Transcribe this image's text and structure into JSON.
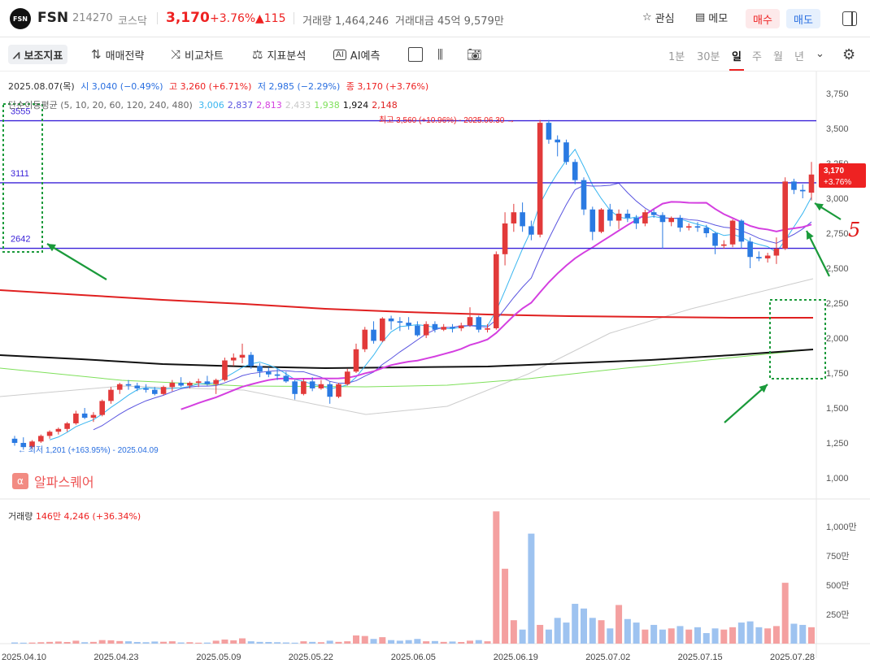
{
  "header": {
    "logo_text": "FSN",
    "name": "FSN",
    "code": "214270",
    "market": "코스닥",
    "price": "3,170",
    "change_pct": "+3.76%",
    "change_abs": "▲115",
    "volume_label": "거래량 1,464,246",
    "amount_label": "거래대금 45억 9,579만",
    "watch_label": "관심",
    "memo_label": "메모",
    "buy_label": "매수",
    "sell_label": "매도"
  },
  "toolbar": {
    "indicators_label": "보조지표",
    "strategy_label": "매매전략",
    "compare_label": "비교차트",
    "analysis_label": "지표분석",
    "ai_label": "AI예측",
    "periods": [
      "1분",
      "30분",
      "일",
      "주",
      "월",
      "년"
    ],
    "active_period": "일"
  },
  "info": {
    "date": "2025.08.07(목)",
    "open": "시 3,040 (−0.49%)",
    "high": "고 3,260 (+6.71%)",
    "low": "저 2,985 (−2.29%)",
    "close": "종 3,170 (+3.76%)",
    "ma_label": "단순이동평균 (5, 10, 20, 60, 120, 240, 480)",
    "ma_values": [
      "3,006",
      "2,837",
      "2,813",
      "2,433",
      "1,938",
      "1,924",
      "2,148"
    ],
    "ma_colors": [
      "#39b6f0",
      "#5a55e0",
      "#d43fe0",
      "#c8c8c8",
      "#7ee05a",
      "#111111",
      "#e02020"
    ]
  },
  "volume_info": {
    "label": "거래량",
    "value": "146만 4,246 (+36.34%)"
  },
  "brand": {
    "name": "알파스퀘어",
    "icon": "α"
  },
  "annotations": {
    "high_label": "최고 3,560 (+10.96%) - 2025.06.30",
    "low_label": "최저 1,201 (+163.95%) - 2025.04.09",
    "hline_labels": [
      "3555",
      "3111",
      "2642"
    ],
    "handwritten_mark": "5",
    "last_price_tag": [
      "3,170",
      "+3.76%"
    ]
  },
  "chart_data": {
    "type": "candlestick",
    "x_tick_labels": [
      "2025.04.10",
      "2025.04.23",
      "2025.05.09",
      "2025.05.22",
      "2025.06.05",
      "2025.06.19",
      "2025.07.02",
      "2025.07.15",
      "2025.07.28"
    ],
    "y_ticks": [
      1000,
      1250,
      1500,
      1750,
      2000,
      2250,
      2500,
      2750,
      3000,
      3250,
      3500,
      3750
    ],
    "y_tick_labels": [
      "1,000",
      "1,250",
      "1,500",
      "1,750",
      "2,000",
      "2,250",
      "2,500",
      "2,750",
      "3,000",
      "3,250",
      "3,500",
      "3,750"
    ],
    "volume_ticks": [
      250,
      500,
      750,
      1000
    ],
    "volume_tick_labels": [
      "250만",
      "500만",
      "750만",
      "1,000만"
    ],
    "candles": [
      {
        "o": 1280,
        "h": 1300,
        "l": 1230,
        "c": 1250
      },
      {
        "o": 1250,
        "h": 1290,
        "l": 1201,
        "c": 1220
      },
      {
        "o": 1220,
        "h": 1270,
        "l": 1210,
        "c": 1260
      },
      {
        "o": 1260,
        "h": 1310,
        "l": 1250,
        "c": 1300
      },
      {
        "o": 1300,
        "h": 1340,
        "l": 1280,
        "c": 1330
      },
      {
        "o": 1330,
        "h": 1360,
        "l": 1310,
        "c": 1350
      },
      {
        "o": 1350,
        "h": 1400,
        "l": 1330,
        "c": 1390
      },
      {
        "o": 1390,
        "h": 1480,
        "l": 1380,
        "c": 1460
      },
      {
        "o": 1460,
        "h": 1500,
        "l": 1420,
        "c": 1430
      },
      {
        "o": 1430,
        "h": 1470,
        "l": 1400,
        "c": 1450
      },
      {
        "o": 1450,
        "h": 1560,
        "l": 1440,
        "c": 1550
      },
      {
        "o": 1550,
        "h": 1650,
        "l": 1530,
        "c": 1630
      },
      {
        "o": 1630,
        "h": 1680,
        "l": 1600,
        "c": 1670
      },
      {
        "o": 1670,
        "h": 1700,
        "l": 1630,
        "c": 1660
      },
      {
        "o": 1660,
        "h": 1680,
        "l": 1620,
        "c": 1640
      },
      {
        "o": 1640,
        "h": 1670,
        "l": 1610,
        "c": 1630
      },
      {
        "o": 1630,
        "h": 1650,
        "l": 1590,
        "c": 1600
      },
      {
        "o": 1600,
        "h": 1660,
        "l": 1590,
        "c": 1650
      },
      {
        "o": 1650,
        "h": 1700,
        "l": 1620,
        "c": 1680
      },
      {
        "o": 1680,
        "h": 1720,
        "l": 1650,
        "c": 1660
      },
      {
        "o": 1660,
        "h": 1690,
        "l": 1640,
        "c": 1680
      },
      {
        "o": 1680,
        "h": 1710,
        "l": 1650,
        "c": 1690
      },
      {
        "o": 1690,
        "h": 1730,
        "l": 1660,
        "c": 1670
      },
      {
        "o": 1670,
        "h": 1710,
        "l": 1600,
        "c": 1700
      },
      {
        "o": 1700,
        "h": 1860,
        "l": 1690,
        "c": 1840
      },
      {
        "o": 1840,
        "h": 1890,
        "l": 1800,
        "c": 1860
      },
      {
        "o": 1860,
        "h": 1960,
        "l": 1820,
        "c": 1880
      },
      {
        "o": 1880,
        "h": 1900,
        "l": 1780,
        "c": 1800
      },
      {
        "o": 1800,
        "h": 1820,
        "l": 1720,
        "c": 1760
      },
      {
        "o": 1760,
        "h": 1790,
        "l": 1720,
        "c": 1740
      },
      {
        "o": 1740,
        "h": 1780,
        "l": 1700,
        "c": 1730
      },
      {
        "o": 1730,
        "h": 1760,
        "l": 1680,
        "c": 1690
      },
      {
        "o": 1690,
        "h": 1700,
        "l": 1560,
        "c": 1600
      },
      {
        "o": 1600,
        "h": 1710,
        "l": 1590,
        "c": 1690
      },
      {
        "o": 1690,
        "h": 1720,
        "l": 1620,
        "c": 1640
      },
      {
        "o": 1640,
        "h": 1700,
        "l": 1630,
        "c": 1670
      },
      {
        "o": 1670,
        "h": 1690,
        "l": 1530,
        "c": 1580
      },
      {
        "o": 1580,
        "h": 1680,
        "l": 1570,
        "c": 1670
      },
      {
        "o": 1670,
        "h": 1780,
        "l": 1660,
        "c": 1760
      },
      {
        "o": 1760,
        "h": 1960,
        "l": 1750,
        "c": 1920
      },
      {
        "o": 1920,
        "h": 2080,
        "l": 1900,
        "c": 2060
      },
      {
        "o": 2060,
        "h": 2120,
        "l": 1960,
        "c": 1980
      },
      {
        "o": 1980,
        "h": 2150,
        "l": 1970,
        "c": 2140
      },
      {
        "o": 2140,
        "h": 2160,
        "l": 2060,
        "c": 2120
      },
      {
        "o": 2120,
        "h": 2150,
        "l": 2050,
        "c": 2110
      },
      {
        "o": 2110,
        "h": 2150,
        "l": 2060,
        "c": 2090
      },
      {
        "o": 2090,
        "h": 2120,
        "l": 2010,
        "c": 2020
      },
      {
        "o": 2020,
        "h": 2120,
        "l": 2000,
        "c": 2100
      },
      {
        "o": 2100,
        "h": 2120,
        "l": 2040,
        "c": 2060
      },
      {
        "o": 2060,
        "h": 2100,
        "l": 2050,
        "c": 2080
      },
      {
        "o": 2080,
        "h": 2100,
        "l": 2040,
        "c": 2070
      },
      {
        "o": 2070,
        "h": 2110,
        "l": 2050,
        "c": 2090
      },
      {
        "o": 2090,
        "h": 2220,
        "l": 2080,
        "c": 2150
      },
      {
        "o": 2150,
        "h": 2160,
        "l": 2040,
        "c": 2060
      },
      {
        "o": 2060,
        "h": 2100,
        "l": 2040,
        "c": 2070
      },
      {
        "o": 2070,
        "h": 2620,
        "l": 2060,
        "c": 2600
      },
      {
        "o": 2600,
        "h": 2900,
        "l": 2520,
        "c": 2820
      },
      {
        "o": 2820,
        "h": 2960,
        "l": 2760,
        "c": 2900
      },
      {
        "o": 2900,
        "h": 2970,
        "l": 2760,
        "c": 2800
      },
      {
        "o": 2800,
        "h": 2840,
        "l": 2700,
        "c": 2740
      },
      {
        "o": 2740,
        "h": 3560,
        "l": 2720,
        "c": 3540
      },
      {
        "o": 3540,
        "h": 3560,
        "l": 3390,
        "c": 3420
      },
      {
        "o": 3420,
        "h": 3450,
        "l": 3300,
        "c": 3400
      },
      {
        "o": 3400,
        "h": 3420,
        "l": 3240,
        "c": 3260
      },
      {
        "o": 3260,
        "h": 3280,
        "l": 3100,
        "c": 3130
      },
      {
        "o": 3130,
        "h": 3150,
        "l": 2880,
        "c": 2920
      },
      {
        "o": 2920,
        "h": 2940,
        "l": 2700,
        "c": 2760
      },
      {
        "o": 2760,
        "h": 2930,
        "l": 2750,
        "c": 2920
      },
      {
        "o": 2920,
        "h": 2960,
        "l": 2800,
        "c": 2840
      },
      {
        "o": 2840,
        "h": 2920,
        "l": 2780,
        "c": 2890
      },
      {
        "o": 2890,
        "h": 2920,
        "l": 2830,
        "c": 2860
      },
      {
        "o": 2860,
        "h": 2880,
        "l": 2780,
        "c": 2820
      },
      {
        "o": 2820,
        "h": 2920,
        "l": 2800,
        "c": 2900
      },
      {
        "o": 2900,
        "h": 2920,
        "l": 2860,
        "c": 2880
      },
      {
        "o": 2880,
        "h": 2900,
        "l": 2640,
        "c": 2830
      },
      {
        "o": 2830,
        "h": 2870,
        "l": 2800,
        "c": 2860
      },
      {
        "o": 2860,
        "h": 2880,
        "l": 2760,
        "c": 2790
      },
      {
        "o": 2790,
        "h": 2820,
        "l": 2770,
        "c": 2800
      },
      {
        "o": 2800,
        "h": 2830,
        "l": 2760,
        "c": 2790
      },
      {
        "o": 2790,
        "h": 2810,
        "l": 2720,
        "c": 2750
      },
      {
        "o": 2750,
        "h": 2760,
        "l": 2600,
        "c": 2660
      },
      {
        "o": 2660,
        "h": 2700,
        "l": 2640,
        "c": 2670
      },
      {
        "o": 2670,
        "h": 2850,
        "l": 2650,
        "c": 2840
      },
      {
        "o": 2840,
        "h": 2850,
        "l": 2640,
        "c": 2690
      },
      {
        "o": 2690,
        "h": 2720,
        "l": 2500,
        "c": 2580
      },
      {
        "o": 2580,
        "h": 2620,
        "l": 2550,
        "c": 2570
      },
      {
        "o": 2570,
        "h": 2610,
        "l": 2540,
        "c": 2590
      },
      {
        "o": 2590,
        "h": 2720,
        "l": 2530,
        "c": 2640
      },
      {
        "o": 2640,
        "h": 3150,
        "l": 2630,
        "c": 3120
      },
      {
        "o": 3120,
        "h": 3140,
        "l": 3030,
        "c": 3060
      },
      {
        "o": 3060,
        "h": 3100,
        "l": 3000,
        "c": 3050
      },
      {
        "o": 3040,
        "h": 3260,
        "l": 2985,
        "c": 3170
      }
    ],
    "volumes": [
      10,
      8,
      9,
      12,
      15,
      18,
      14,
      25,
      12,
      15,
      30,
      28,
      22,
      20,
      14,
      12,
      18,
      16,
      20,
      10,
      12,
      8,
      9,
      25,
      35,
      28,
      45,
      20,
      15,
      14,
      12,
      10,
      8,
      20,
      15,
      12,
      25,
      15,
      20,
      70,
      65,
      40,
      55,
      30,
      25,
      30,
      40,
      20,
      22,
      15,
      18,
      14,
      25,
      30,
      20,
      1130,
      640,
      200,
      120,
      940,
      160,
      120,
      220,
      180,
      340,
      300,
      220,
      200,
      130,
      330,
      210,
      180,
      120,
      160,
      120,
      130,
      150,
      120,
      140,
      90,
      130,
      120,
      140,
      180,
      190,
      140,
      130,
      150,
      520,
      170,
      160,
      140
    ],
    "horizontal_levels": [
      3555,
      3111,
      2642
    ],
    "ma_120_series_name": "120",
    "ymin": 1000,
    "ymax": 3750
  }
}
